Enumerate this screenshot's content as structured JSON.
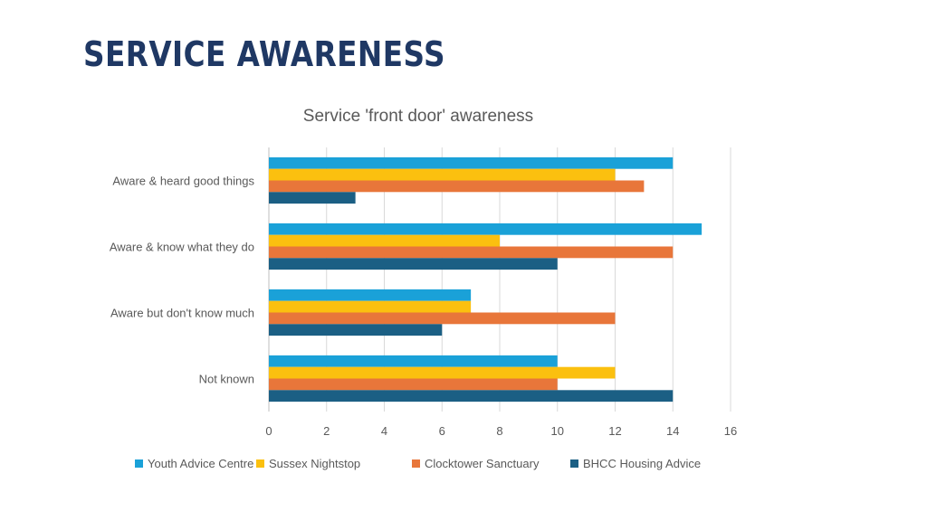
{
  "slide": {
    "title": "SERVICE AWARENESS"
  },
  "chart_data": {
    "type": "bar",
    "orientation": "horizontal",
    "title": "Service 'front door' awareness",
    "categories": [
      "Aware & heard good things",
      "Aware & know what they do",
      "Aware but don't know much",
      "Not known"
    ],
    "series": [
      {
        "name": "Youth Advice Centre",
        "color": "#1aa1d8",
        "values": [
          14,
          15,
          7,
          10
        ]
      },
      {
        "name": "Sussex Nightstop",
        "color": "#fbc00f",
        "values": [
          12,
          8,
          7,
          12
        ]
      },
      {
        "name": "Clocktower Sanctuary",
        "color": "#e8763a",
        "values": [
          13,
          14,
          12,
          10
        ]
      },
      {
        "name": "BHCC Housing Advice",
        "color": "#1b5f84",
        "values": [
          3,
          10,
          6,
          14
        ]
      }
    ],
    "xlim": [
      0,
      16
    ],
    "xticks": [
      0,
      2,
      4,
      6,
      8,
      10,
      12,
      14,
      16
    ],
    "grid": true,
    "legend": "bottom"
  }
}
